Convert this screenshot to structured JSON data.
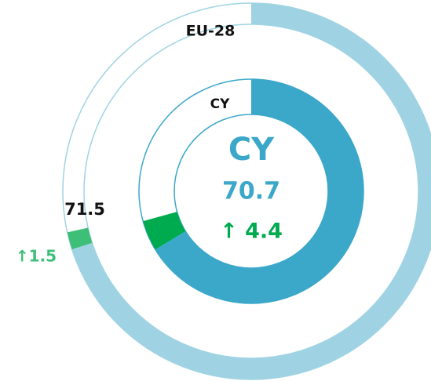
{
  "chart_data": {
    "type": "donut",
    "categories": [
      "EU-28",
      "CY"
    ],
    "values": [
      71.5,
      70.7
    ],
    "changes": [
      1.5,
      4.4
    ],
    "change_labels": [
      "↑1.5",
      "↑ 4.4"
    ],
    "center_label": "CY",
    "colors": [
      "#9fd3e3",
      "#3ba7c9"
    ],
    "change_colors": [
      "#3dbf78",
      "#00aa4f"
    ],
    "ylim": [
      0,
      100
    ]
  }
}
